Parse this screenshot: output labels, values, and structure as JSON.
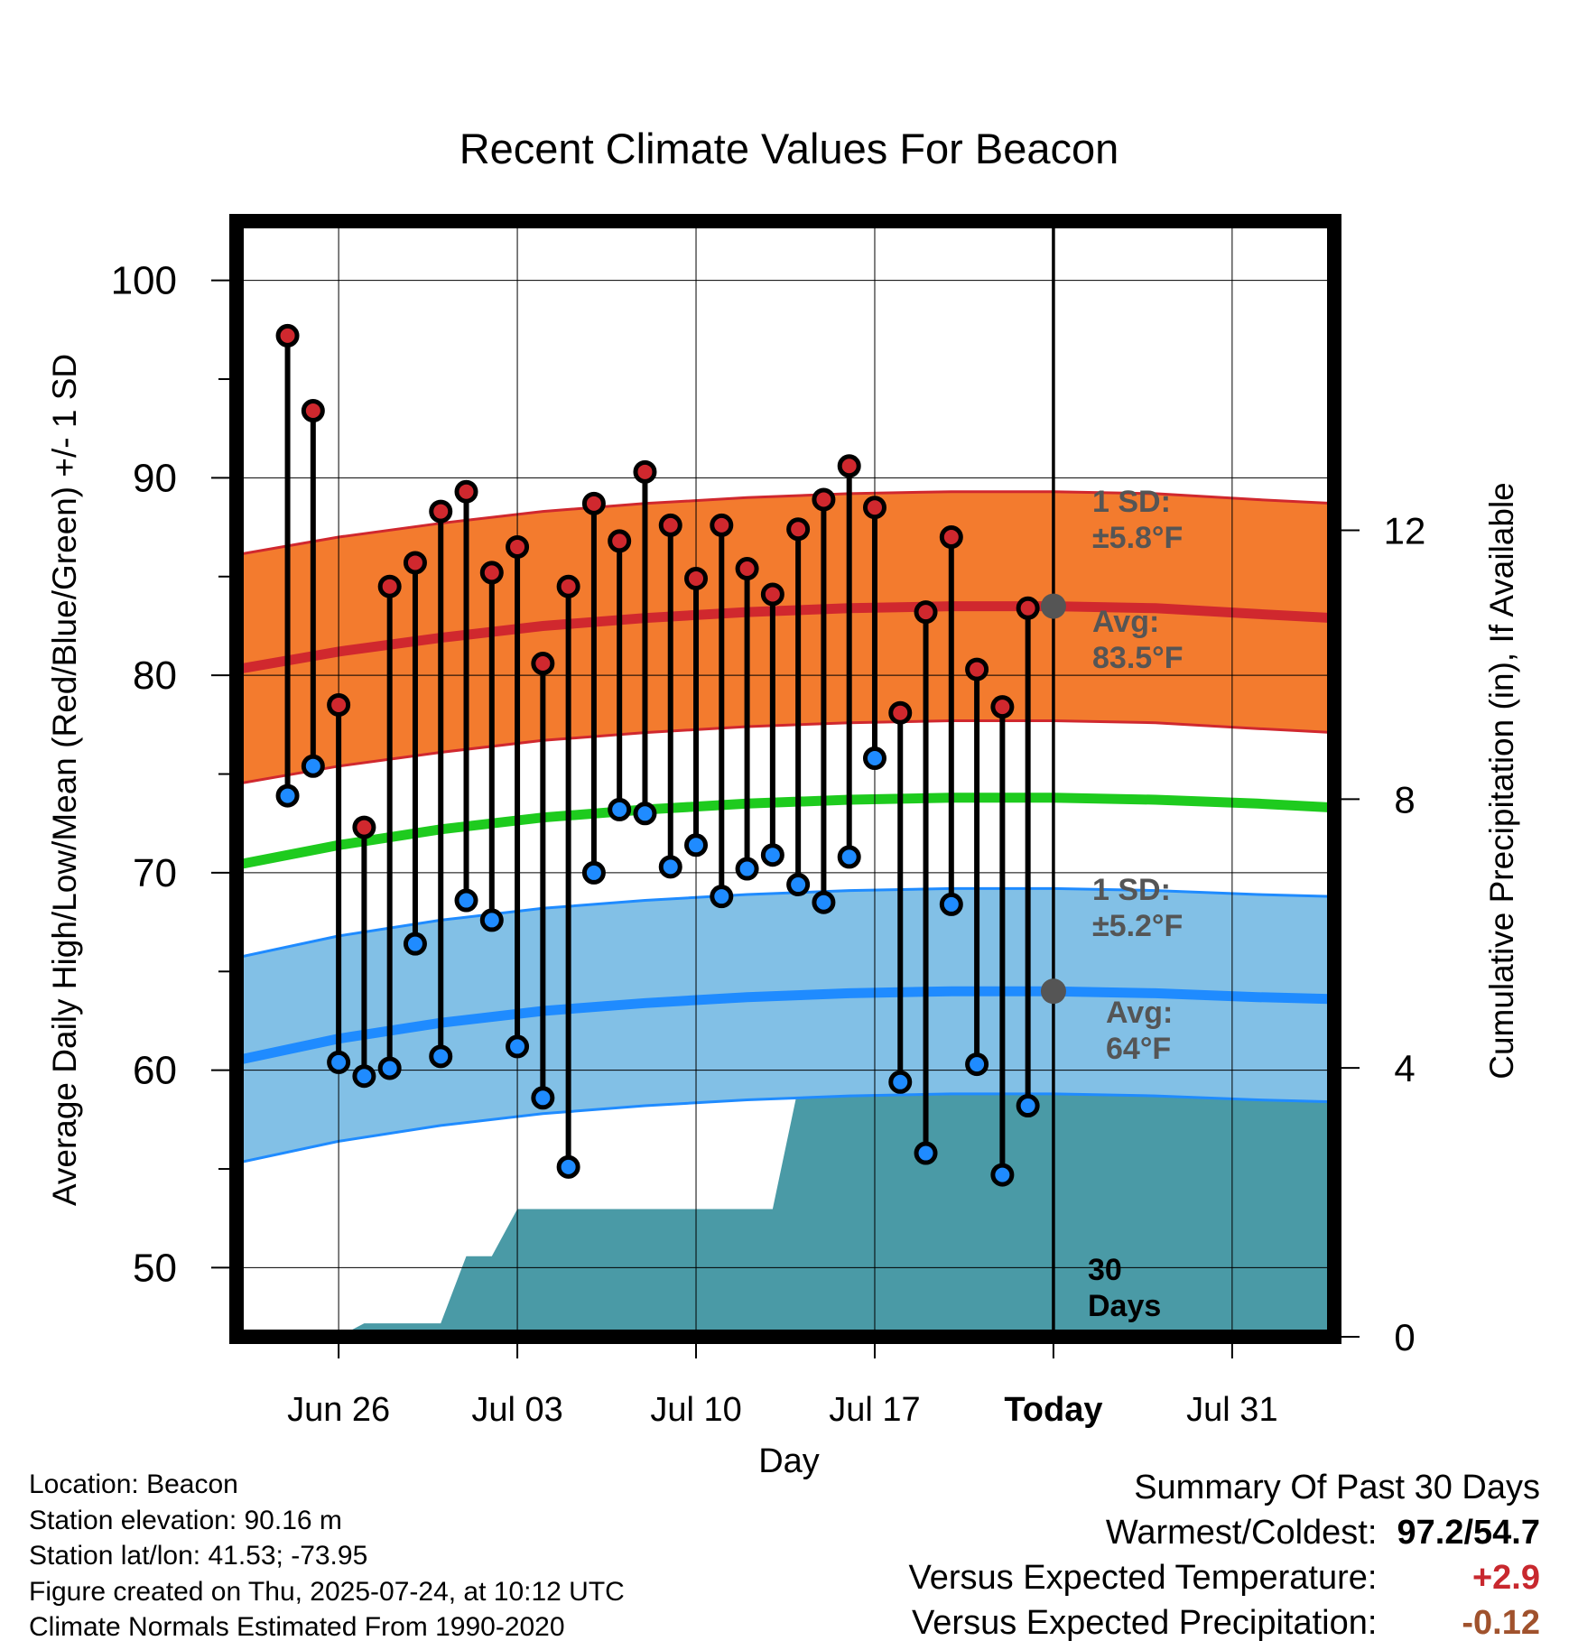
{
  "chart_data": {
    "type": "line",
    "title": "Recent Climate Values For Beacon",
    "xlabel": "Day",
    "ylabel": "Average Daily High/Low/Mean (Red/Blue/Green) +/- 1 SD",
    "y2label": "Cumulative Precipitation (in), If Available",
    "ylim": [
      46.5,
      103
    ],
    "y2lim": [
      0,
      16.6
    ],
    "yticks": [
      50,
      60,
      70,
      80,
      90,
      100
    ],
    "y2ticks": [
      0,
      4,
      8,
      12
    ],
    "xlim": [
      "2025-06-22",
      "2025-08-04"
    ],
    "xticks": [
      {
        "date": "2025-06-26",
        "label": "Jun 26"
      },
      {
        "date": "2025-07-03",
        "label": "Jul 03"
      },
      {
        "date": "2025-07-10",
        "label": "Jul 10"
      },
      {
        "date": "2025-07-17",
        "label": "Jul 17"
      },
      {
        "date": "2025-07-24",
        "label": "Today"
      },
      {
        "date": "2025-07-31",
        "label": "Jul 31"
      }
    ],
    "grid": true,
    "today": "2025-07-24",
    "period_label": [
      "30",
      "Days"
    ],
    "colors": {
      "high": "#d0282e",
      "low": "#1f8bff",
      "mean": "#1ecb1e",
      "high_band": "#f37b2e",
      "low_band": "#82c0e6",
      "precip": "#4a9aa6",
      "avg_marker": "#555555"
    },
    "days": [
      "2025-06-24",
      "2025-06-25",
      "2025-06-26",
      "2025-06-27",
      "2025-06-28",
      "2025-06-29",
      "2025-06-30",
      "2025-07-01",
      "2025-07-02",
      "2025-07-03",
      "2025-07-04",
      "2025-07-05",
      "2025-07-06",
      "2025-07-07",
      "2025-07-08",
      "2025-07-09",
      "2025-07-10",
      "2025-07-11",
      "2025-07-12",
      "2025-07-13",
      "2025-07-14",
      "2025-07-15",
      "2025-07-16",
      "2025-07-17",
      "2025-07-18",
      "2025-07-19",
      "2025-07-20",
      "2025-07-21",
      "2025-07-22",
      "2025-07-23"
    ],
    "series": [
      {
        "name": "High",
        "values": [
          97.2,
          93.4,
          78.5,
          72.3,
          84.5,
          85.7,
          88.3,
          89.3,
          85.2,
          86.5,
          80.6,
          84.5,
          88.7,
          86.8,
          90.3,
          87.6,
          84.9,
          87.6,
          85.4,
          84.1,
          87.4,
          88.9,
          90.6,
          88.5,
          78.1,
          83.2,
          87.0,
          80.3,
          78.4,
          83.4
        ]
      },
      {
        "name": "Low",
        "values": [
          73.9,
          75.4,
          60.4,
          59.7,
          60.1,
          66.4,
          60.7,
          68.6,
          67.6,
          61.2,
          58.6,
          55.1,
          70.0,
          73.2,
          73.0,
          70.3,
          71.4,
          68.8,
          70.2,
          70.9,
          69.4,
          68.5,
          70.8,
          75.8,
          59.4,
          55.8,
          68.4,
          60.3,
          54.7,
          58.2
        ]
      }
    ],
    "normals": {
      "dates": [
        "2025-06-22",
        "2025-06-26",
        "2025-06-30",
        "2025-07-04",
        "2025-07-08",
        "2025-07-12",
        "2025-07-16",
        "2025-07-20",
        "2025-07-24",
        "2025-07-28",
        "2025-08-01",
        "2025-08-04"
      ],
      "high_mean": [
        80.3,
        81.2,
        81.9,
        82.5,
        82.9,
        83.2,
        83.4,
        83.5,
        83.5,
        83.4,
        83.1,
        82.9
      ],
      "low_mean": [
        60.5,
        61.6,
        62.4,
        63.0,
        63.4,
        63.7,
        63.9,
        64.0,
        64.0,
        63.9,
        63.7,
        63.6
      ],
      "mean": [
        70.4,
        71.4,
        72.2,
        72.8,
        73.2,
        73.5,
        73.7,
        73.8,
        73.8,
        73.7,
        73.5,
        73.3
      ],
      "high_sd": 5.8,
      "low_sd": 5.2
    },
    "precip_cumulative": {
      "dates": [
        "2025-06-22",
        "2025-06-26",
        "2025-06-27",
        "2025-06-30",
        "2025-07-01",
        "2025-07-02",
        "2025-07-03",
        "2025-07-13",
        "2025-07-14",
        "2025-08-04"
      ],
      "values": [
        0,
        0,
        0.2,
        0.2,
        1.2,
        1.2,
        1.9,
        1.9,
        3.7,
        3.7
      ]
    },
    "annotations": {
      "high_sd_label": [
        "1 SD:",
        "±5.8°F"
      ],
      "high_avg_label": [
        "Avg:",
        "83.5°F"
      ],
      "low_sd_label": [
        "1 SD:",
        "±5.2°F"
      ],
      "low_avg_label": [
        "Avg:",
        "64°F"
      ]
    }
  },
  "footer": {
    "lines": [
      "Location: Beacon",
      "Station elevation: 90.16 m",
      "Station lat/lon: 41.53; -73.95",
      "Figure created on Thu, 2025-07-24, at 10:12 UTC",
      "Climate Normals Estimated From 1990-2020"
    ]
  },
  "summary": {
    "title": "Summary Of Past 30 Days",
    "warmest_coldest_label": "Warmest/Coldest:",
    "warmest_coldest_value": "97.2/54.7",
    "temp_label": "Versus Expected Temperature:",
    "temp_value": "+2.9",
    "temp_color": "#c8282e",
    "precip_label": "Versus Expected Precipitation:",
    "precip_value": "-0.12",
    "precip_color": "#a0522d"
  }
}
